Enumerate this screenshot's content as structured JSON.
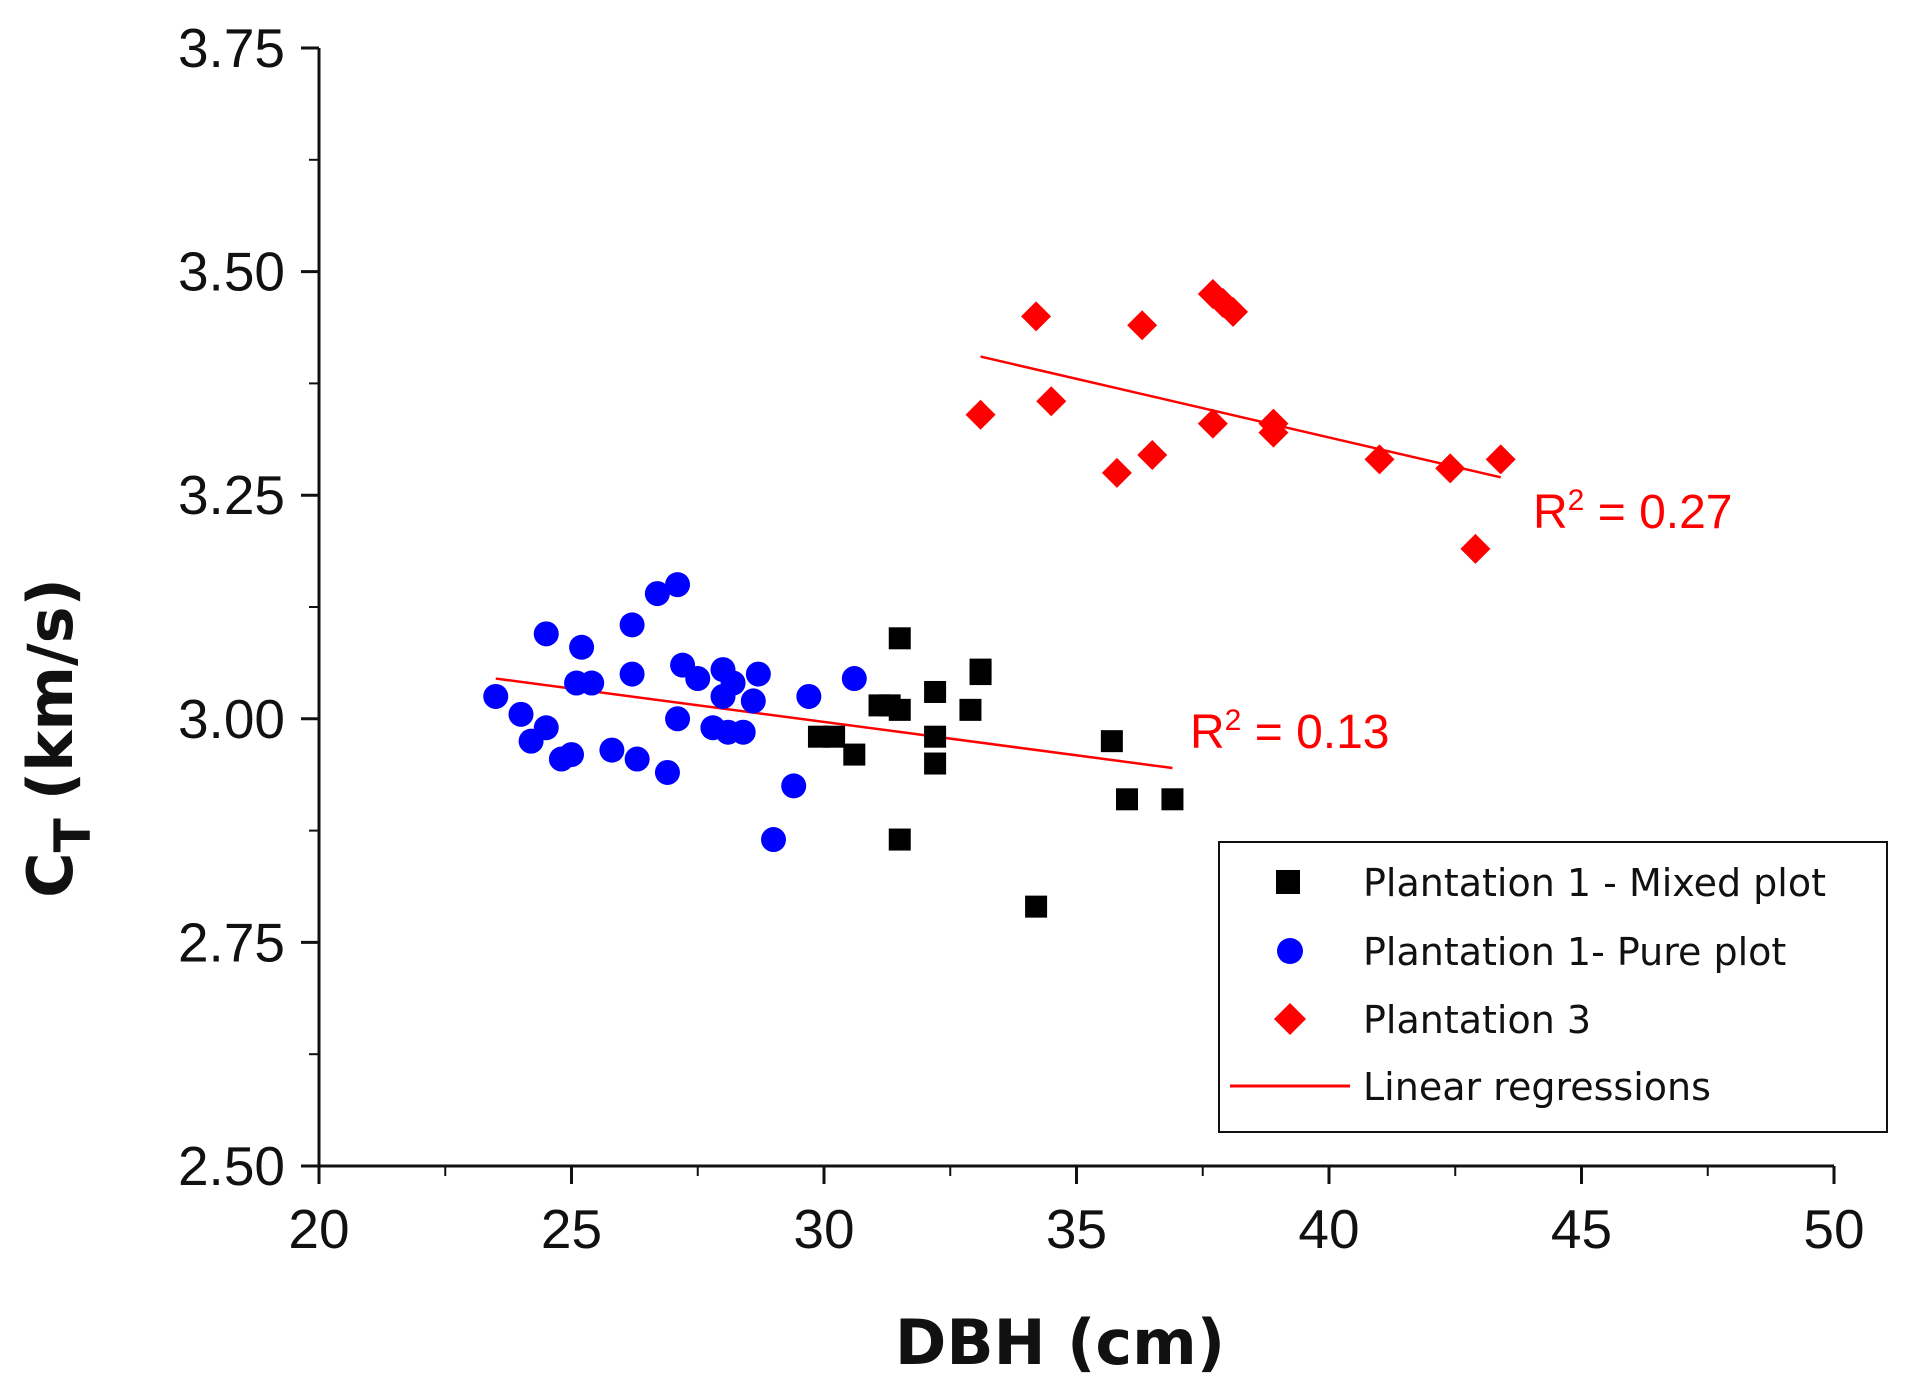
{
  "chart_data": {
    "type": "scatter",
    "title": "",
    "xlabel": "DBH (cm)",
    "ylabel_main": "C",
    "ylabel_sub": "T",
    "ylabel_unit": "(km/s)",
    "xlim": [
      20,
      50
    ],
    "ylim": [
      2.5,
      3.75
    ],
    "xticks": [
      20,
      25,
      30,
      35,
      40,
      45,
      50
    ],
    "yticks": [
      2.5,
      2.75,
      3.0,
      3.25,
      3.5,
      3.75
    ],
    "xtick_labels": [
      "20",
      "25",
      "30",
      "35",
      "40",
      "45",
      "50"
    ],
    "ytick_labels": [
      "2.50",
      "2.75",
      "3.00",
      "3.25",
      "3.50",
      "3.75"
    ],
    "grid": false,
    "legend_position": "bottom-right",
    "series": [
      {
        "name": "Plantation 1 - Mixed plot",
        "marker": "square",
        "color": "#000000",
        "points": [
          [
            31.5,
            3.09
          ],
          [
            33.1,
            3.055
          ],
          [
            33.1,
            3.05
          ],
          [
            32.2,
            3.03
          ],
          [
            31.1,
            3.015
          ],
          [
            31.3,
            3.015
          ],
          [
            31.5,
            3.01
          ],
          [
            32.9,
            3.01
          ],
          [
            29.9,
            2.98
          ],
          [
            30.2,
            2.98
          ],
          [
            32.2,
            2.98
          ],
          [
            35.7,
            2.975
          ],
          [
            30.6,
            2.96
          ],
          [
            32.2,
            2.95
          ],
          [
            36.0,
            2.91
          ],
          [
            36.9,
            2.91
          ],
          [
            31.5,
            2.865
          ],
          [
            34.2,
            2.79
          ]
        ]
      },
      {
        "name": "Plantation 1- Pure plot",
        "marker": "circle",
        "color": "#0000ff",
        "points": [
          [
            27.1,
            3.15
          ],
          [
            26.7,
            3.14
          ],
          [
            26.2,
            3.105
          ],
          [
            24.5,
            3.095
          ],
          [
            25.2,
            3.08
          ],
          [
            27.2,
            3.06
          ],
          [
            28.0,
            3.055
          ],
          [
            28.7,
            3.05
          ],
          [
            26.2,
            3.05
          ],
          [
            27.5,
            3.045
          ],
          [
            30.6,
            3.045
          ],
          [
            25.1,
            3.04
          ],
          [
            25.4,
            3.04
          ],
          [
            28.2,
            3.04
          ],
          [
            28.0,
            3.025
          ],
          [
            23.5,
            3.025
          ],
          [
            29.7,
            3.025
          ],
          [
            28.6,
            3.02
          ],
          [
            24.0,
            3.005
          ],
          [
            27.1,
            3.0
          ],
          [
            24.5,
            2.99
          ],
          [
            27.8,
            2.99
          ],
          [
            28.1,
            2.985
          ],
          [
            28.4,
            2.985
          ],
          [
            24.2,
            2.975
          ],
          [
            25.8,
            2.965
          ],
          [
            25.0,
            2.96
          ],
          [
            24.8,
            2.955
          ],
          [
            26.3,
            2.955
          ],
          [
            26.9,
            2.94
          ],
          [
            29.4,
            2.925
          ],
          [
            29.0,
            2.865
          ]
        ]
      },
      {
        "name": "Plantation 3",
        "marker": "diamond",
        "color": "#ff0000",
        "points": [
          [
            37.7,
            3.475
          ],
          [
            37.9,
            3.465
          ],
          [
            38.1,
            3.455
          ],
          [
            34.2,
            3.45
          ],
          [
            36.3,
            3.44
          ],
          [
            34.5,
            3.355
          ],
          [
            33.1,
            3.34
          ],
          [
            37.7,
            3.33
          ],
          [
            38.9,
            3.33
          ],
          [
            38.9,
            3.32
          ],
          [
            36.5,
            3.295
          ],
          [
            41.0,
            3.29
          ],
          [
            43.4,
            3.29
          ],
          [
            42.4,
            3.28
          ],
          [
            35.8,
            3.275
          ],
          [
            42.9,
            3.19
          ]
        ]
      }
    ],
    "regressions": [
      {
        "name": "Linear regressions",
        "color": "#ff0000",
        "x": [
          23.5,
          36.9
        ],
        "y": [
          3.045,
          2.945
        ],
        "r2_label": "R² = 0.13",
        "r2_base": "R",
        "r2_sup": "2",
        "r2_rest": " = 0.13"
      },
      {
        "name": "Linear regressions",
        "color": "#ff0000",
        "x": [
          33.1,
          43.4
        ],
        "y": [
          3.405,
          3.27
        ],
        "r2_label": "R² = 0.27",
        "r2_base": "R",
        "r2_sup": "2",
        "r2_rest": " = 0.27"
      }
    ],
    "legend": [
      {
        "label": "Plantation 1 - Mixed plot",
        "marker": "square",
        "color": "#000000"
      },
      {
        "label": "Plantation 1- Pure plot",
        "marker": "circle",
        "color": "#0000ff"
      },
      {
        "label": "Plantation 3",
        "marker": "diamond",
        "color": "#ff0000"
      },
      {
        "label": "Linear regressions",
        "marker": "line",
        "color": "#ff0000"
      }
    ]
  }
}
